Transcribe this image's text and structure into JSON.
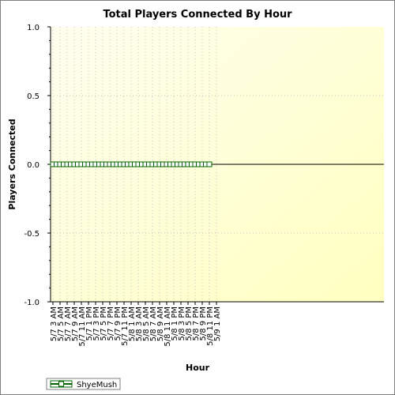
{
  "chart_data": {
    "type": "line",
    "title": "Total Players Connected By Hour",
    "xlabel": "Hour",
    "ylabel": "Players Connected",
    "ylim": [
      -1.0,
      1.0
    ],
    "yticks": [
      "1.0",
      "0.5",
      "0.0",
      "-0.5",
      "-1.0"
    ],
    "categories": [
      "5/7 3 AM",
      "5/7 5 AM",
      "5/7 7 AM",
      "5/7 9 AM",
      "5/7 11 AM",
      "5/7 1 PM",
      "5/7 3 PM",
      "5/7 5 PM",
      "5/7 7 PM",
      "5/7 9 PM",
      "5/7 11 PM",
      "5/8 1 AM",
      "5/8 3 AM",
      "5/8 5 AM",
      "5/8 7 AM",
      "5/8 9 AM",
      "5/8 11 AM",
      "5/8 1 PM",
      "5/8 3 PM",
      "5/8 5 PM",
      "5/8 7 PM",
      "5/8 9 PM",
      "5/8 11 PM",
      "5/9 1 AM"
    ],
    "grid": true,
    "legend_position": "bottom-left",
    "series": [
      {
        "name": "ShyeMush",
        "color": "#006400",
        "segments": [
          {
            "start_hour_offset": 0,
            "values": [
              0,
              0,
              0,
              0,
              0,
              0,
              0,
              0,
              0,
              0,
              0,
              0,
              0,
              0,
              0,
              0,
              0,
              0,
              0,
              0,
              0,
              0
            ]
          },
          {
            "start_hour_offset": 22,
            "values": [
              0,
              0,
              0,
              0,
              0,
              0,
              0,
              0,
              0,
              0,
              0,
              0,
              0,
              0,
              0,
              0,
              0,
              0,
              0,
              0,
              0,
              0,
              0
            ]
          }
        ]
      }
    ]
  }
}
